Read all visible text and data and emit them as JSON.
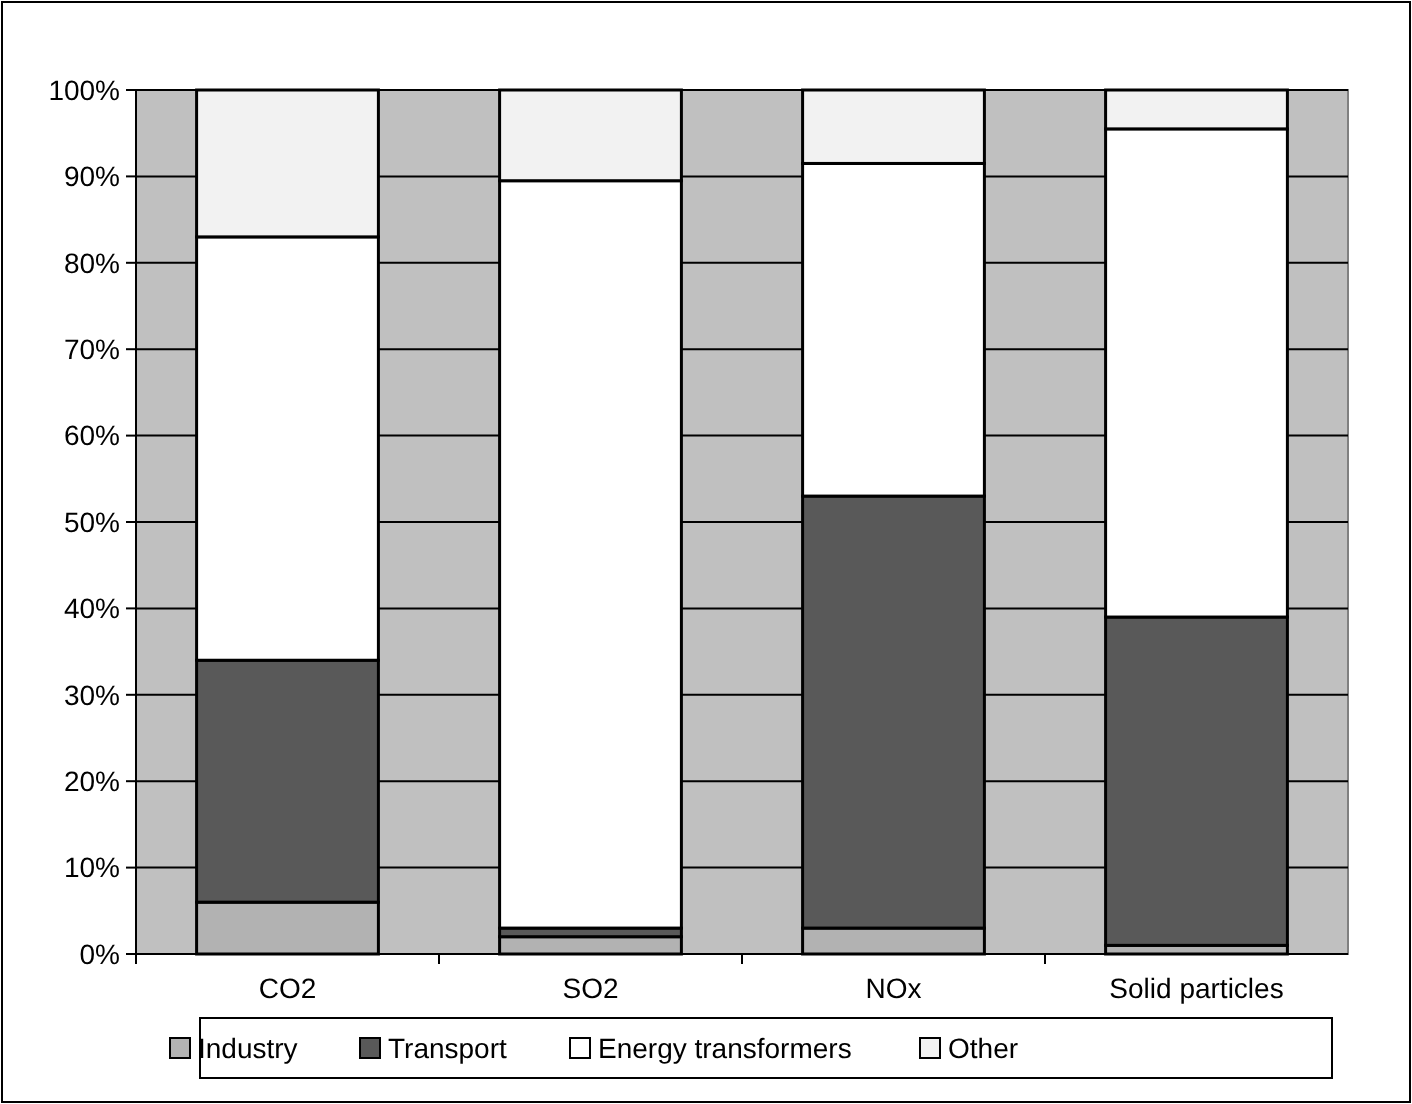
{
  "chart_data": {
    "type": "bar",
    "stacked": true,
    "categories": [
      "CO2",
      "SO2",
      "NOx",
      "Solid particles"
    ],
    "series": [
      {
        "name": "Industry",
        "color": "#b2b2b2",
        "values": [
          6,
          2,
          3,
          1
        ]
      },
      {
        "name": "Transport",
        "color": "#595959",
        "values": [
          28,
          1,
          50,
          38
        ]
      },
      {
        "name": "Energy transformers",
        "color": "#ffffff",
        "values": [
          49,
          86.5,
          38.5,
          56.5
        ]
      },
      {
        "name": "Other",
        "color": "#f2f2f2",
        "values": [
          17,
          10.5,
          8.5,
          4.5
        ]
      }
    ],
    "ylim": [
      0,
      100
    ],
    "yticks": [
      {
        "value": 0,
        "label": "0%"
      },
      {
        "value": 10,
        "label": "10%"
      },
      {
        "value": 20,
        "label": "20%"
      },
      {
        "value": 30,
        "label": "30%"
      },
      {
        "value": 40,
        "label": "40%"
      },
      {
        "value": 50,
        "label": "50%"
      },
      {
        "value": 60,
        "label": "60%"
      },
      {
        "value": 70,
        "label": "70%"
      },
      {
        "value": 80,
        "label": "80%"
      },
      {
        "value": 90,
        "label": "90%"
      },
      {
        "value": 100,
        "label": "100%"
      }
    ],
    "grid": "y",
    "legend": "bottom"
  }
}
